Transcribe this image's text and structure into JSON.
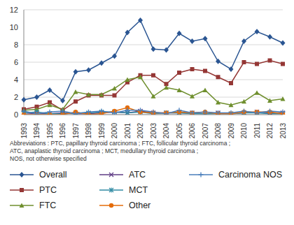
{
  "chart_data": {
    "type": "line",
    "categories": [
      "1993",
      "1994",
      "1995",
      "1996",
      "1997",
      "1998",
      "1999",
      "2000",
      "2001",
      "2002",
      "2003",
      "2004",
      "2005",
      "2006",
      "2007",
      "2008",
      "2009",
      "2010",
      "2011",
      "2012",
      "2013"
    ],
    "series": [
      {
        "name": "Overall",
        "color": "#2a5592",
        "marker": "diamond",
        "values": [
          1.7,
          2.0,
          2.8,
          1.6,
          4.9,
          5.1,
          5.9,
          6.7,
          9.4,
          10.8,
          7.5,
          7.4,
          9.3,
          8.4,
          8.7,
          6.1,
          5.2,
          8.4,
          9.5,
          8.9,
          8.2
        ]
      },
      {
        "name": "PTC",
        "color": "#953735",
        "marker": "square",
        "values": [
          0.6,
          0.9,
          1.4,
          0.5,
          1.5,
          2.2,
          2.2,
          2.2,
          3.7,
          4.5,
          4.5,
          3.5,
          4.8,
          5.2,
          5.0,
          4.3,
          3.6,
          6.0,
          5.8,
          6.2,
          5.8
        ]
      },
      {
        "name": "FTC",
        "color": "#6f8f2e",
        "marker": "triangle",
        "values": [
          0.5,
          0.6,
          1.1,
          0.6,
          2.6,
          2.3,
          2.3,
          3.0,
          4.0,
          4.3,
          2.1,
          3.1,
          2.8,
          2.1,
          2.8,
          1.4,
          1.1,
          1.5,
          2.5,
          1.6,
          1.8
        ]
      },
      {
        "name": "ATC",
        "color": "#5f3c85",
        "marker": "x",
        "values": [
          0.2,
          0.1,
          0.1,
          0.2,
          0.1,
          0.1,
          0.2,
          0.3,
          0.2,
          0.4,
          0.2,
          0.2,
          0.2,
          0.2,
          0.1,
          0.2,
          0.1,
          0.2,
          0.3,
          0.2,
          0.2
        ]
      },
      {
        "name": "MCT",
        "color": "#2f8aa3",
        "marker": "star",
        "values": [
          0.2,
          0.3,
          0.1,
          0.1,
          0.2,
          0.2,
          0.3,
          0.3,
          0.2,
          0.3,
          0.1,
          0.2,
          0.2,
          0.1,
          0.1,
          0.1,
          0.1,
          0.2,
          0.2,
          0.1,
          0.1
        ]
      },
      {
        "name": "Other",
        "color": "#e46c0a",
        "marker": "circle",
        "values": [
          0,
          0,
          0,
          0,
          0.3,
          0,
          0.1,
          0.4,
          0.8,
          0.3,
          0.2,
          0.2,
          0.3,
          0.2,
          0.3,
          0.1,
          0.1,
          0.3,
          0.3,
          0.3,
          0.1
        ]
      },
      {
        "name": "Carcinoma NOS",
        "color": "#4a7ebb",
        "marker": "plus",
        "values": [
          0.4,
          0.1,
          0.3,
          0.4,
          0.1,
          0.3,
          0.4,
          0.2,
          0.5,
          0.5,
          0.3,
          0.1,
          0.5,
          0.2,
          0.3,
          0.2,
          0.2,
          0.4,
          0.2,
          0.4,
          0.3
        ]
      }
    ],
    "ylim": [
      0,
      12
    ],
    "yticks": [
      0,
      2,
      4,
      6,
      8,
      10,
      12
    ],
    "grid": true,
    "line_style": "solid",
    "annotations": [
      "Abbreviations : PTC, papillary thyroid carcinoma ; FTC, follicular thyroid carcinoma ;",
      "ATC, anaplastic thyroid carcinoma ; MCT, medullary thyroid carcinoma ;",
      "NOS, not otherwise specified"
    ]
  }
}
